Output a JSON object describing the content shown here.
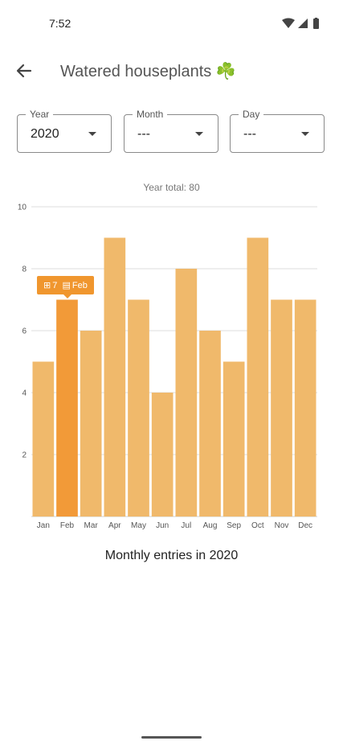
{
  "status_bar": {
    "time": "7:52",
    "icons": [
      "wifi-icon",
      "cell-signal-icon",
      "battery-icon"
    ]
  },
  "app_bar": {
    "title": "Watered houseplants",
    "title_emoji": "☘️",
    "back_icon": "arrow-back-icon"
  },
  "filters": [
    {
      "label": "Year",
      "value": "2020"
    },
    {
      "label": "Month",
      "value": "---"
    },
    {
      "label": "Day",
      "value": "---"
    }
  ],
  "chart_header": "Year total: 80",
  "chart_data": {
    "type": "bar",
    "categories": [
      "Jan",
      "Feb",
      "Mar",
      "Apr",
      "May",
      "Jun",
      "Jul",
      "Aug",
      "Sep",
      "Oct",
      "Nov",
      "Dec"
    ],
    "values": [
      5,
      7,
      6,
      9,
      7,
      4,
      8,
      6,
      5,
      9,
      7,
      7
    ],
    "ylim": [
      0,
      10
    ],
    "yticks": [
      2,
      4,
      6,
      8,
      10
    ],
    "grid": true,
    "bar_color": "#f0b96b",
    "highlight_color": "#f29a38",
    "highlight_index": 1,
    "tooltip": {
      "value_icon": "⊞",
      "value": "7",
      "category_icon": "▤",
      "category": "Feb"
    }
  },
  "caption": "Monthly entries in 2020"
}
